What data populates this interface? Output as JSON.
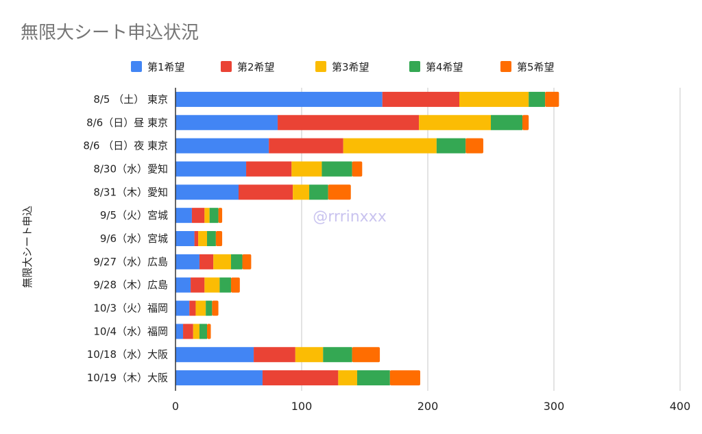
{
  "chart_data": {
    "type": "bar",
    "orientation": "horizontal",
    "stacked": true,
    "title": "無限大シート申込状況",
    "xlabel": "",
    "ylabel": "無限大シート申込",
    "xlim": [
      0,
      400
    ],
    "xticks": [
      0,
      100,
      200,
      300,
      400
    ],
    "grid": true,
    "legend_position": "top",
    "annotation": "@rrrinxxx",
    "categories": [
      "8/5 （土） 東京",
      "8/6（日）昼 東京",
      "8/6 （日）夜 東京",
      "8/30（水）愛知",
      "8/31（木）愛知",
      "9/5（火）宮城",
      "9/6（水）宮城",
      "9/27（水）広島",
      "9/28（木）広島",
      "10/3（火）福岡",
      "10/4（水）福岡",
      "10/18（水）大阪",
      "10/19（木）大阪"
    ],
    "series": [
      {
        "name": "第1希望",
        "color": "#4285f4",
        "values": [
          164,
          81,
          74,
          56,
          50,
          13,
          15,
          19,
          12,
          11,
          6,
          62,
          69
        ]
      },
      {
        "name": "第2希望",
        "color": "#ea4335",
        "values": [
          61,
          112,
          59,
          36,
          43,
          10,
          3,
          11,
          11,
          5,
          8,
          33,
          60
        ]
      },
      {
        "name": "第3希望",
        "color": "#fbbc04",
        "values": [
          55,
          57,
          74,
          24,
          13,
          4,
          7,
          14,
          12,
          8,
          5,
          22,
          15
        ]
      },
      {
        "name": "第4希望",
        "color": "#34a853",
        "values": [
          13,
          25,
          23,
          24,
          15,
          7,
          7,
          9,
          9,
          5,
          6,
          23,
          26
        ]
      },
      {
        "name": "第5希望",
        "color": "#ff6d01",
        "values": [
          11,
          5,
          14,
          8,
          18,
          3,
          5,
          7,
          7,
          5,
          3,
          22,
          24
        ]
      }
    ]
  }
}
